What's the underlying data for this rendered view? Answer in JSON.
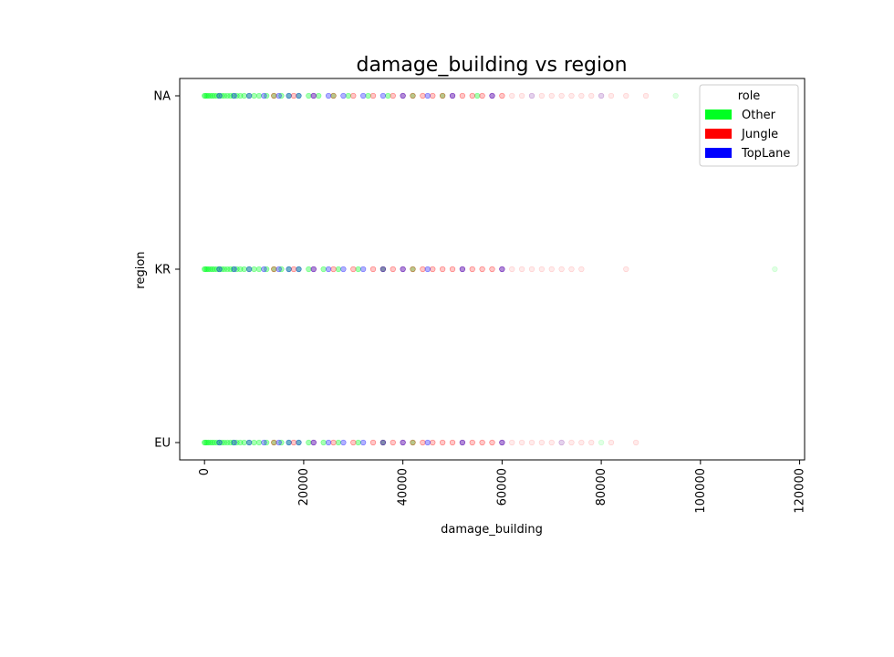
{
  "chart_data": {
    "type": "scatter",
    "title": "damage_building vs region",
    "xlabel": "damage_building",
    "ylabel": "region",
    "xlim": [
      -5000,
      121000
    ],
    "x_ticks": [
      0,
      20000,
      40000,
      60000,
      80000,
      100000,
      120000
    ],
    "y_categories": [
      "EU",
      "KR",
      "NA"
    ],
    "grid": false,
    "legend": {
      "title": "role",
      "placement": "top-right",
      "entries": [
        {
          "label": "Other",
          "color": "#00ff22"
        },
        {
          "label": "Jungle",
          "color": "#ff0000"
        },
        {
          "label": "TopLane",
          "color": "#0000ff"
        }
      ]
    },
    "series": [
      {
        "name": "Other",
        "color": "#00ff22",
        "points": {
          "NA": [
            0,
            200,
            500,
            800,
            1200,
            1600,
            2000,
            2500,
            3000,
            3500,
            4000,
            4600,
            5200,
            5800,
            6500,
            7200,
            8000,
            9000,
            10000,
            11000,
            12500,
            14000,
            15500,
            17000,
            19000,
            21000,
            23000,
            26000,
            29000,
            33000,
            37000,
            42000,
            48000,
            55000,
            95000
          ],
          "KR": [
            0,
            200,
            500,
            800,
            1200,
            1600,
            2000,
            2500,
            3000,
            3500,
            4000,
            4600,
            5200,
            5800,
            6500,
            7200,
            8000,
            9000,
            10000,
            11000,
            12500,
            14000,
            15500,
            17000,
            19000,
            21000,
            24000,
            27000,
            31000,
            36000,
            42000,
            115000
          ],
          "EU": [
            0,
            200,
            500,
            800,
            1200,
            1600,
            2000,
            2500,
            3000,
            3500,
            4000,
            4600,
            5200,
            5800,
            6500,
            7200,
            8000,
            9000,
            10000,
            11000,
            12500,
            14000,
            15500,
            17000,
            19000,
            21000,
            24000,
            27000,
            31000,
            36000,
            42000,
            80000
          ]
        }
      },
      {
        "name": "Jungle",
        "color": "#ff0000",
        "points": {
          "NA": [
            14000,
            18000,
            22000,
            26000,
            30000,
            34000,
            38000,
            40000,
            42000,
            44000,
            46000,
            48000,
            50000,
            52000,
            54000,
            56000,
            58000,
            60000,
            62000,
            64000,
            66000,
            68000,
            70000,
            72000,
            74000,
            76000,
            78000,
            80000,
            82000,
            85000,
            89000
          ],
          "KR": [
            14000,
            18000,
            22000,
            26000,
            30000,
            34000,
            36000,
            38000,
            40000,
            42000,
            44000,
            46000,
            48000,
            50000,
            52000,
            54000,
            56000,
            58000,
            60000,
            62000,
            64000,
            66000,
            68000,
            70000,
            72000,
            74000,
            76000,
            85000
          ],
          "EU": [
            14000,
            18000,
            22000,
            26000,
            30000,
            34000,
            36000,
            38000,
            40000,
            42000,
            44000,
            46000,
            48000,
            50000,
            52000,
            54000,
            56000,
            58000,
            60000,
            62000,
            64000,
            66000,
            68000,
            70000,
            72000,
            74000,
            76000,
            78000,
            82000,
            87000
          ]
        }
      },
      {
        "name": "TopLane",
        "color": "#0000ff",
        "points": {
          "NA": [
            3000,
            6000,
            9000,
            12000,
            15000,
            17000,
            19000,
            22000,
            25000,
            28000,
            32000,
            36000,
            40000,
            45000,
            50000,
            58000,
            66000,
            80000
          ],
          "KR": [
            3000,
            6000,
            9000,
            12000,
            15000,
            17000,
            19000,
            22000,
            25000,
            28000,
            32000,
            36000,
            40000,
            45000,
            52000,
            60000
          ],
          "EU": [
            3000,
            6000,
            9000,
            12000,
            15000,
            17000,
            19000,
            22000,
            25000,
            28000,
            32000,
            36000,
            40000,
            45000,
            52000,
            60000,
            72000
          ]
        }
      }
    ]
  }
}
